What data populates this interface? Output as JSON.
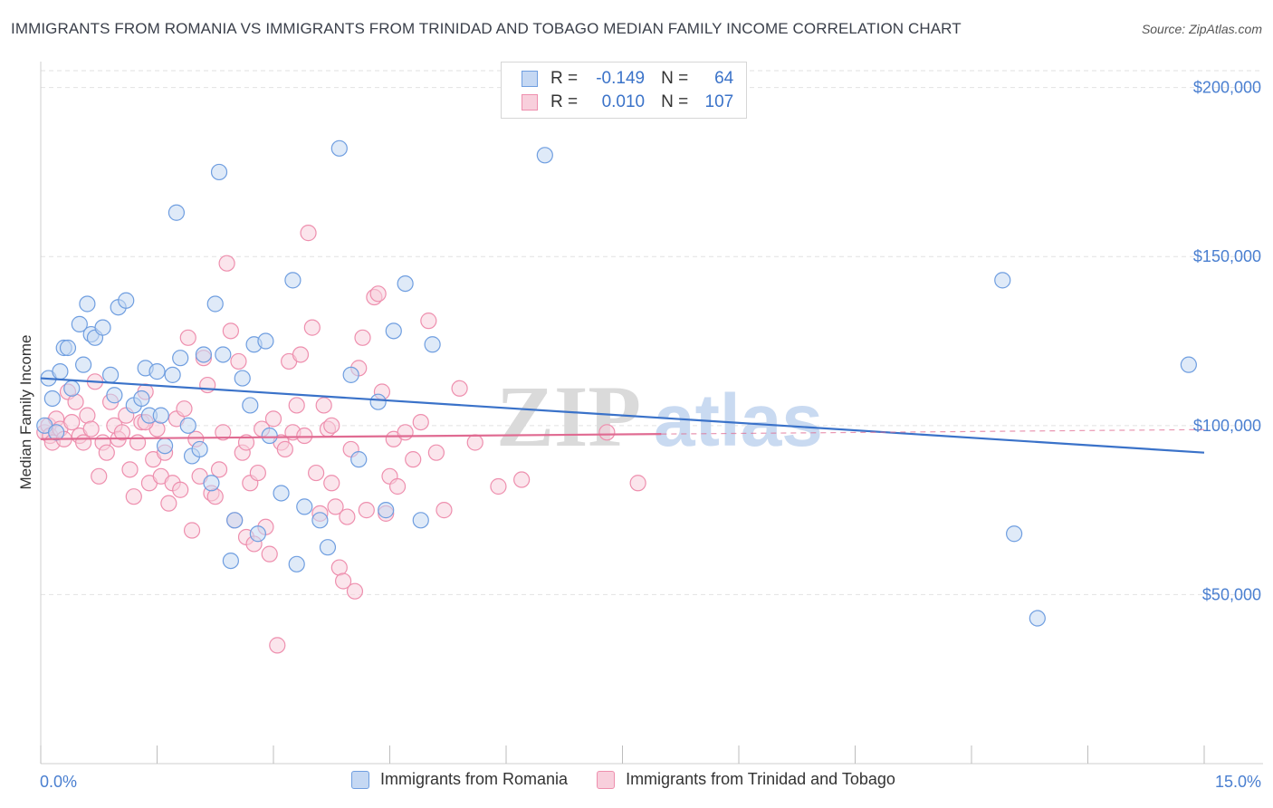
{
  "title": "IMMIGRANTS FROM ROMANIA VS IMMIGRANTS FROM TRINIDAD AND TOBAGO MEDIAN FAMILY INCOME CORRELATION CHART",
  "source": "Source: ZipAtlas.com",
  "watermark": {
    "zip": "ZIP",
    "atlas": "atlas"
  },
  "colors": {
    "romania": "#6f9ee0",
    "romania_fill": "#c5d8f3",
    "romania_line": "#3a72c9",
    "trinidad": "#ee8fae",
    "trinidad_fill": "#f8cfdc",
    "trinidad_line": "#e06b92",
    "axis_text": "#4a7fd0",
    "grid": "#e2e2e2"
  },
  "legend_top": {
    "rows": [
      {
        "r_label": "R =",
        "r_value": "-0.149",
        "n_label": "N =",
        "n_value": "64"
      },
      {
        "r_label": "R =",
        "r_value": "0.010",
        "n_label": "N =",
        "n_value": "107"
      }
    ]
  },
  "legend_bottom": [
    "Immigrants from Romania",
    "Immigrants from Trinidad and Tobago"
  ],
  "chart_data": {
    "type": "scatter",
    "xlabel": "",
    "ylabel": "Median Family Income",
    "xlim": [
      0,
      15
    ],
    "ylim": [
      0,
      205000
    ],
    "x_tick_labels": [
      "0.0%",
      "15.0%"
    ],
    "y_ticks": [
      50000,
      100000,
      150000,
      200000
    ],
    "y_tick_labels": [
      "$50,000",
      "$100,000",
      "$150,000",
      "$200,000"
    ],
    "grid": "horizontal dashed",
    "legend": "top-center",
    "series": [
      {
        "name": "Immigrants from Romania",
        "trend": {
          "x": [
            0.0,
            15.0
          ],
          "y": [
            114000,
            92000
          ]
        },
        "points": [
          [
            0.1,
            114000
          ],
          [
            0.15,
            108000
          ],
          [
            0.05,
            100000
          ],
          [
            0.25,
            116000
          ],
          [
            0.3,
            123000
          ],
          [
            0.35,
            123000
          ],
          [
            0.4,
            111000
          ],
          [
            0.5,
            130000
          ],
          [
            0.55,
            118000
          ],
          [
            0.6,
            136000
          ],
          [
            0.65,
            127000
          ],
          [
            0.7,
            126000
          ],
          [
            0.8,
            129000
          ],
          [
            0.9,
            115000
          ],
          [
            0.95,
            109000
          ],
          [
            1.0,
            135000
          ],
          [
            1.1,
            137000
          ],
          [
            1.2,
            106000
          ],
          [
            1.3,
            108000
          ],
          [
            1.35,
            117000
          ],
          [
            1.4,
            103000
          ],
          [
            1.5,
            116000
          ],
          [
            1.55,
            103000
          ],
          [
            1.6,
            94000
          ],
          [
            1.7,
            115000
          ],
          [
            1.75,
            163000
          ],
          [
            1.8,
            120000
          ],
          [
            1.9,
            100000
          ],
          [
            1.95,
            91000
          ],
          [
            2.05,
            93000
          ],
          [
            2.1,
            121000
          ],
          [
            2.2,
            83000
          ],
          [
            2.25,
            136000
          ],
          [
            2.3,
            175000
          ],
          [
            2.35,
            121000
          ],
          [
            2.45,
            60000
          ],
          [
            2.5,
            72000
          ],
          [
            2.6,
            114000
          ],
          [
            2.7,
            106000
          ],
          [
            2.75,
            124000
          ],
          [
            2.8,
            68000
          ],
          [
            2.9,
            125000
          ],
          [
            2.95,
            97000
          ],
          [
            3.1,
            80000
          ],
          [
            3.25,
            143000
          ],
          [
            3.3,
            59000
          ],
          [
            3.4,
            76000
          ],
          [
            3.6,
            72000
          ],
          [
            3.7,
            64000
          ],
          [
            3.85,
            182000
          ],
          [
            4.0,
            115000
          ],
          [
            4.1,
            90000
          ],
          [
            4.35,
            107000
          ],
          [
            4.45,
            75000
          ],
          [
            4.55,
            128000
          ],
          [
            4.7,
            142000
          ],
          [
            4.9,
            72000
          ],
          [
            5.05,
            124000
          ],
          [
            6.5,
            180000
          ],
          [
            12.4,
            143000
          ],
          [
            12.55,
            68000
          ],
          [
            12.85,
            43000
          ],
          [
            14.8,
            118000
          ],
          [
            0.2,
            98000
          ]
        ]
      },
      {
        "name": "Immigrants from Trinidad and Tobago",
        "trend": {
          "x": [
            0.0,
            8.0
          ],
          "y": [
            96000,
            97500
          ]
        },
        "points": [
          [
            0.05,
            98000
          ],
          [
            0.1,
            100000
          ],
          [
            0.12,
            97000
          ],
          [
            0.15,
            95000
          ],
          [
            0.2,
            102000
          ],
          [
            0.25,
            99000
          ],
          [
            0.3,
            96000
          ],
          [
            0.35,
            110000
          ],
          [
            0.4,
            101000
          ],
          [
            0.45,
            107000
          ],
          [
            0.5,
            97000
          ],
          [
            0.55,
            95000
          ],
          [
            0.6,
            103000
          ],
          [
            0.65,
            99000
          ],
          [
            0.7,
            113000
          ],
          [
            0.75,
            85000
          ],
          [
            0.8,
            95000
          ],
          [
            0.85,
            92000
          ],
          [
            0.9,
            107000
          ],
          [
            0.95,
            100000
          ],
          [
            1.0,
            96000
          ],
          [
            1.05,
            98000
          ],
          [
            1.1,
            103000
          ],
          [
            1.15,
            87000
          ],
          [
            1.2,
            79000
          ],
          [
            1.25,
            95000
          ],
          [
            1.3,
            101000
          ],
          [
            1.35,
            110000
          ],
          [
            1.4,
            83000
          ],
          [
            1.45,
            90000
          ],
          [
            1.5,
            99000
          ],
          [
            1.55,
            85000
          ],
          [
            1.6,
            92000
          ],
          [
            1.65,
            77000
          ],
          [
            1.7,
            83000
          ],
          [
            1.75,
            102000
          ],
          [
            1.8,
            81000
          ],
          [
            1.85,
            105000
          ],
          [
            1.9,
            126000
          ],
          [
            1.95,
            69000
          ],
          [
            2.0,
            96000
          ],
          [
            2.05,
            85000
          ],
          [
            2.1,
            120000
          ],
          [
            2.15,
            112000
          ],
          [
            2.2,
            80000
          ],
          [
            2.25,
            79000
          ],
          [
            2.3,
            87000
          ],
          [
            2.35,
            98000
          ],
          [
            2.4,
            148000
          ],
          [
            2.45,
            128000
          ],
          [
            2.5,
            72000
          ],
          [
            2.55,
            119000
          ],
          [
            2.6,
            92000
          ],
          [
            2.65,
            67000
          ],
          [
            2.7,
            83000
          ],
          [
            2.75,
            65000
          ],
          [
            2.8,
            86000
          ],
          [
            2.85,
            99000
          ],
          [
            2.9,
            70000
          ],
          [
            2.95,
            62000
          ],
          [
            3.0,
            102000
          ],
          [
            3.05,
            35000
          ],
          [
            3.1,
            95000
          ],
          [
            3.15,
            93000
          ],
          [
            3.2,
            119000
          ],
          [
            3.25,
            98000
          ],
          [
            3.3,
            106000
          ],
          [
            3.35,
            121000
          ],
          [
            3.4,
            97000
          ],
          [
            3.45,
            157000
          ],
          [
            3.5,
            129000
          ],
          [
            3.55,
            86000
          ],
          [
            3.6,
            74000
          ],
          [
            3.65,
            106000
          ],
          [
            3.7,
            99000
          ],
          [
            3.75,
            83000
          ],
          [
            3.8,
            76000
          ],
          [
            3.85,
            58000
          ],
          [
            3.9,
            54000
          ],
          [
            3.95,
            73000
          ],
          [
            4.0,
            93000
          ],
          [
            4.05,
            51000
          ],
          [
            4.1,
            117000
          ],
          [
            4.15,
            126000
          ],
          [
            4.2,
            75000
          ],
          [
            4.3,
            138000
          ],
          [
            4.35,
            139000
          ],
          [
            4.4,
            110000
          ],
          [
            4.45,
            74000
          ],
          [
            4.5,
            85000
          ],
          [
            4.55,
            96000
          ],
          [
            4.6,
            82000
          ],
          [
            4.7,
            98000
          ],
          [
            4.8,
            90000
          ],
          [
            4.9,
            101000
          ],
          [
            5.0,
            131000
          ],
          [
            5.1,
            92000
          ],
          [
            5.2,
            75000
          ],
          [
            5.4,
            111000
          ],
          [
            5.6,
            95000
          ],
          [
            5.9,
            82000
          ],
          [
            6.2,
            84000
          ],
          [
            7.3,
            98000
          ],
          [
            7.7,
            83000
          ],
          [
            1.35,
            101000
          ],
          [
            2.65,
            95000
          ],
          [
            3.75,
            100000
          ]
        ]
      }
    ]
  }
}
